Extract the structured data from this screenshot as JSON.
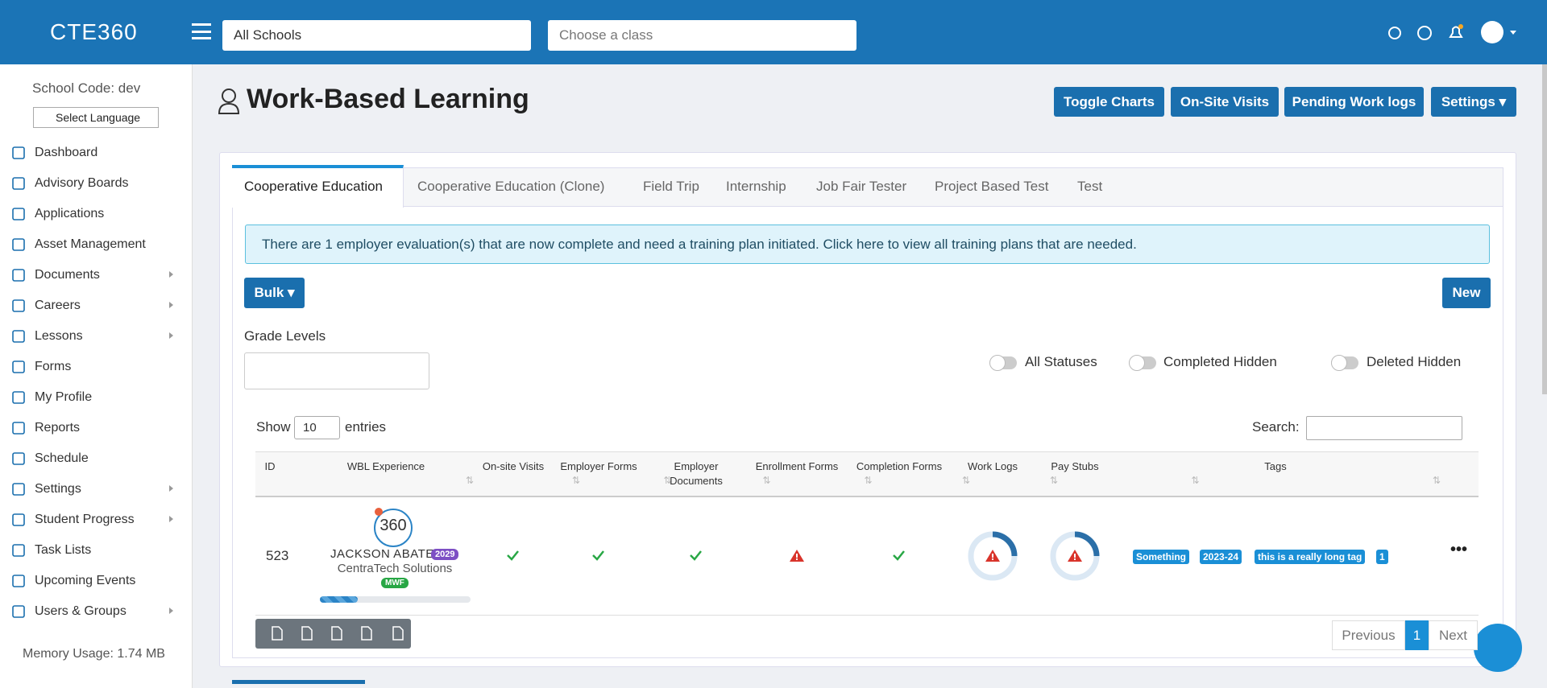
{
  "header": {
    "logo": "CTE360",
    "school_select": "All Schools",
    "class_select": "Choose a class"
  },
  "sidebar": {
    "school_code": "School Code: dev",
    "language": "Select Language",
    "menu": [
      {
        "label": "Dashboard",
        "submenu": false
      },
      {
        "label": "Advisory Boards",
        "submenu": false
      },
      {
        "label": "Applications",
        "submenu": false
      },
      {
        "label": "Asset Management",
        "submenu": false
      },
      {
        "label": "Documents",
        "submenu": true
      },
      {
        "label": "Careers",
        "submenu": true
      },
      {
        "label": "Lessons",
        "submenu": true
      },
      {
        "label": "Forms",
        "submenu": false
      },
      {
        "label": "My Profile",
        "submenu": false
      },
      {
        "label": "Reports",
        "submenu": false
      },
      {
        "label": "Schedule",
        "submenu": false
      },
      {
        "label": "Settings",
        "submenu": true
      },
      {
        "label": "Student Progress",
        "submenu": true
      },
      {
        "label": "Task Lists",
        "submenu": false
      },
      {
        "label": "Upcoming Events",
        "submenu": false
      },
      {
        "label": "Users & Groups",
        "submenu": true
      }
    ],
    "memory": "Memory Usage: 1.74 MB"
  },
  "page": {
    "title": "Work-Based Learning",
    "buttons": [
      "Toggle Charts",
      "On-Site Visits",
      "Pending Work logs",
      "Settings"
    ]
  },
  "tabs": [
    "Cooperative Education",
    "Cooperative Education (Clone)",
    "Field Trip",
    "Internship",
    "Job Fair Tester",
    "Project Based Test",
    "Test"
  ],
  "alert": "There are 1 employer evaluation(s) that are now complete and need a training plan initiated. Click here to view all training plans that are needed.",
  "controls": {
    "bulk": "Bulk",
    "new": "New",
    "grade_levels": "Grade Levels",
    "toggles": [
      "All Statuses",
      "Completed Hidden",
      "Deleted Hidden"
    ],
    "show": "Show",
    "entries_value": "10",
    "entries": "entries",
    "search": "Search:"
  },
  "table": {
    "headers": [
      "ID",
      "WBL Experience",
      "On-site Visits",
      "Employer Forms",
      "Employer Documents",
      "Enrollment Forms",
      "Completion Forms",
      "Work Logs",
      "Pay Stubs",
      "Tags"
    ],
    "row": {
      "id": "523",
      "name": "JACKSON ABATE",
      "year": "2029",
      "company": "CentraTech Solutions",
      "schedule": "MWF",
      "avatar": "360",
      "tags": [
        "Something",
        "2023-24",
        "this is a really long tag",
        "1"
      ]
    }
  },
  "pagination": {
    "previous": "Previous",
    "page": "1",
    "next": "Next"
  }
}
